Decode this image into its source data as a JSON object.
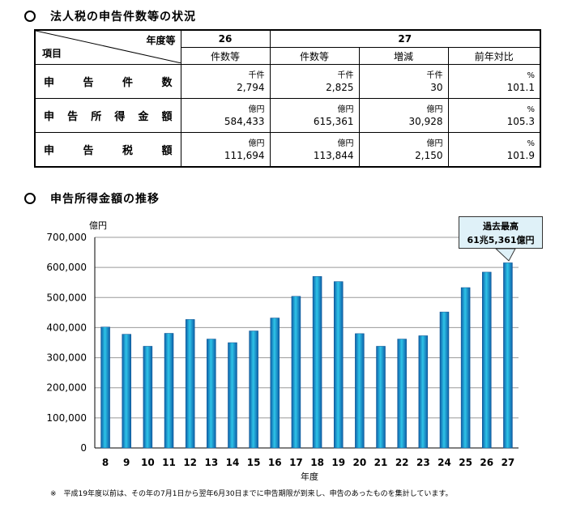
{
  "section1": {
    "title": "法人税の申告件数等の状況"
  },
  "table": {
    "corner_top": "年度等",
    "corner_bottom": "項目",
    "year_prev": "26",
    "year_curr": "27",
    "sub_prev": "件数等",
    "sub_curr": "件数等",
    "sub_change": "増減",
    "sub_ratio": "前年対比",
    "rows": [
      {
        "label": [
          "申",
          "告",
          "件",
          "数"
        ],
        "unit": "千件",
        "prev": "2,794",
        "curr": "2,825",
        "change_unit": "千件",
        "change": "30",
        "ratio_unit": "%",
        "ratio": "101.1"
      },
      {
        "label": [
          "申",
          "告",
          "所",
          "得",
          "金",
          "額"
        ],
        "unit": "億円",
        "prev": "584,433",
        "curr": "615,361",
        "change_unit": "億円",
        "change": "30,928",
        "ratio_unit": "%",
        "ratio": "105.3"
      },
      {
        "label": [
          "申",
          "告",
          "税",
          "額"
        ],
        "unit": "億円",
        "prev": "111,694",
        "curr": "113,844",
        "change_unit": "億円",
        "change": "2,150",
        "ratio_unit": "%",
        "ratio": "101.9"
      }
    ]
  },
  "section2": {
    "title": "申告所得金額の推移"
  },
  "chart_data": {
    "type": "bar",
    "title": "申告所得金額の推移",
    "ylabel": "億円",
    "xlabel": "年度",
    "ylim": [
      0,
      700000
    ],
    "yticks": [
      "0",
      "100,000",
      "200,000",
      "300,000",
      "400,000",
      "500,000",
      "600,000",
      "700,000"
    ],
    "ytick_values": [
      0,
      100000,
      200000,
      300000,
      400000,
      500000,
      600000,
      700000
    ],
    "categories": [
      "8",
      "9",
      "10",
      "11",
      "12",
      "13",
      "14",
      "15",
      "16",
      "17",
      "18",
      "19",
      "20",
      "21",
      "22",
      "23",
      "24",
      "25",
      "26",
      "27"
    ],
    "values": [
      402000,
      378000,
      338000,
      381000,
      427000,
      362000,
      350000,
      389000,
      432000,
      504000,
      570000,
      553000,
      380000,
      338000,
      362000,
      373000,
      452000,
      533000,
      584433,
      615361
    ],
    "grid": "horizontal",
    "bar_color": "#1a9bd6",
    "annotation": {
      "line1": "過去最高",
      "line2": "61兆5,361億円"
    }
  },
  "footnote": "※　平成19年度以前は、その年の7月1日から翌年6月30日までに申告期限が到来し、申告のあったものを集計しています。"
}
